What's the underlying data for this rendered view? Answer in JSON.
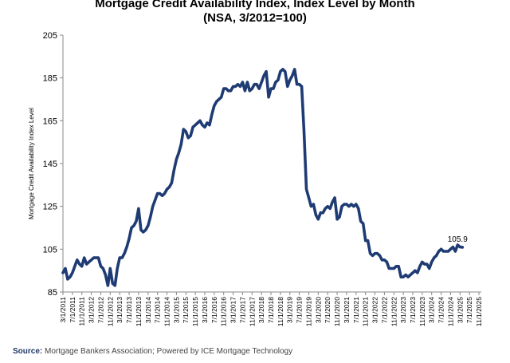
{
  "chart_data": {
    "type": "line",
    "title": "Mortgage Credit Availability Index, Index Level by Month",
    "subtitle": "(NSA, 3/2012=100)",
    "ylabel": "Mortgage Credit Availability Index Level",
    "xlabel": "",
    "ylim": [
      85,
      205
    ],
    "yticks": [
      85,
      105,
      125,
      145,
      165,
      185,
      205
    ],
    "xlim": [
      "2011-03",
      "2025-12"
    ],
    "xtick_labels": [
      "3/1/2011",
      "7/1/2011",
      "11/1/2011",
      "3/1/2012",
      "7/1/2012",
      "11/1/2012",
      "3/1/2013",
      "7/1/2013",
      "11/1/2013",
      "3/1/2014",
      "7/1/2014",
      "11/1/2014",
      "3/1/2015",
      "7/1/2015",
      "11/1/2015",
      "3/1/2016",
      "7/1/2016",
      "11/1/2016",
      "3/1/2017",
      "7/1/2017",
      "11/1/2017",
      "3/1/2018",
      "7/1/2018",
      "11/1/2018",
      "3/1/2019",
      "7/1/2019",
      "11/1/2019",
      "3/1/2020",
      "7/1/2020",
      "11/1/2020",
      "3/1/2021",
      "7/1/2021",
      "11/1/2021",
      "3/1/2022",
      "7/1/2022",
      "11/1/2022",
      "3/1/2023",
      "7/1/2023",
      "11/1/2023",
      "3/1/2024",
      "7/1/2024",
      "11/1/2024",
      "3/1/2025",
      "7/1/2025",
      "11/1/2025"
    ],
    "grid": false,
    "line_color": "#1f3b73",
    "annotation": {
      "x": "2025-10",
      "y": 105.9,
      "text": "105.9"
    },
    "series": [
      {
        "points": [
          [
            "2011-03",
            94
          ],
          [
            "2011-04",
            96
          ],
          [
            "2011-05",
            91
          ],
          [
            "2011-06",
            92
          ],
          [
            "2011-07",
            94
          ],
          [
            "2011-08",
            97
          ],
          [
            "2011-09",
            100
          ],
          [
            "2011-10",
            98
          ],
          [
            "2011-11",
            97
          ],
          [
            "2011-12",
            101
          ],
          [
            "2012-01",
            98
          ],
          [
            "2012-02",
            99
          ],
          [
            "2012-03",
            100
          ],
          [
            "2012-04",
            101
          ],
          [
            "2012-05",
            101
          ],
          [
            "2012-06",
            101
          ],
          [
            "2012-07",
            97
          ],
          [
            "2012-08",
            96
          ],
          [
            "2012-09",
            93
          ],
          [
            "2012-10",
            88
          ],
          [
            "2012-11",
            96
          ],
          [
            "2012-12",
            89
          ],
          [
            "2013-01",
            88
          ],
          [
            "2013-02",
            96
          ],
          [
            "2013-03",
            101
          ],
          [
            "2013-04",
            101
          ],
          [
            "2013-05",
            103
          ],
          [
            "2013-06",
            106
          ],
          [
            "2013-07",
            110
          ],
          [
            "2013-08",
            115
          ],
          [
            "2013-09",
            116
          ],
          [
            "2013-10",
            118
          ],
          [
            "2013-11",
            124
          ],
          [
            "2013-12",
            114
          ],
          [
            "2014-01",
            113
          ],
          [
            "2014-02",
            114
          ],
          [
            "2014-03",
            116
          ],
          [
            "2014-04",
            120
          ],
          [
            "2014-05",
            125
          ],
          [
            "2014-06",
            128
          ],
          [
            "2014-07",
            131
          ],
          [
            "2014-08",
            131
          ],
          [
            "2014-09",
            130
          ],
          [
            "2014-10",
            131
          ],
          [
            "2014-11",
            133
          ],
          [
            "2014-12",
            134
          ],
          [
            "2015-01",
            136
          ],
          [
            "2015-02",
            142
          ],
          [
            "2015-03",
            147
          ],
          [
            "2015-04",
            150
          ],
          [
            "2015-05",
            154
          ],
          [
            "2015-06",
            161
          ],
          [
            "2015-07",
            160
          ],
          [
            "2015-08",
            157
          ],
          [
            "2015-09",
            158
          ],
          [
            "2015-10",
            162
          ],
          [
            "2015-11",
            163
          ],
          [
            "2015-12",
            164
          ],
          [
            "2016-01",
            165
          ],
          [
            "2016-02",
            163
          ],
          [
            "2016-03",
            162
          ],
          [
            "2016-04",
            164
          ],
          [
            "2016-05",
            163
          ],
          [
            "2016-06",
            168
          ],
          [
            "2016-07",
            172
          ],
          [
            "2016-08",
            174
          ],
          [
            "2016-09",
            175
          ],
          [
            "2016-10",
            176
          ],
          [
            "2016-11",
            180
          ],
          [
            "2016-12",
            180
          ],
          [
            "2017-01",
            179
          ],
          [
            "2017-02",
            179
          ],
          [
            "2017-03",
            181
          ],
          [
            "2017-04",
            181
          ],
          [
            "2017-05",
            182
          ],
          [
            "2017-06",
            181
          ],
          [
            "2017-07",
            183
          ],
          [
            "2017-08",
            179
          ],
          [
            "2017-09",
            183
          ],
          [
            "2017-10",
            179
          ],
          [
            "2017-11",
            180
          ],
          [
            "2017-12",
            182
          ],
          [
            "2018-01",
            182
          ],
          [
            "2018-02",
            180
          ],
          [
            "2018-03",
            183
          ],
          [
            "2018-04",
            186
          ],
          [
            "2018-05",
            188
          ],
          [
            "2018-06",
            176
          ],
          [
            "2018-07",
            180
          ],
          [
            "2018-08",
            180
          ],
          [
            "2018-09",
            183
          ],
          [
            "2018-10",
            184
          ],
          [
            "2018-11",
            188
          ],
          [
            "2018-12",
            189
          ],
          [
            "2019-01",
            188
          ],
          [
            "2019-02",
            181
          ],
          [
            "2019-03",
            184
          ],
          [
            "2019-04",
            186
          ],
          [
            "2019-05",
            189
          ],
          [
            "2019-06",
            182
          ],
          [
            "2019-07",
            182
          ],
          [
            "2019-08",
            181
          ],
          [
            "2019-09",
            160
          ],
          [
            "2019-10",
            133
          ],
          [
            "2019-11",
            129
          ],
          [
            "2019-12",
            125
          ],
          [
            "2020-01",
            126
          ],
          [
            "2020-02",
            121
          ],
          [
            "2020-03",
            119
          ],
          [
            "2020-04",
            122
          ],
          [
            "2020-05",
            122
          ],
          [
            "2020-06",
            124
          ],
          [
            "2020-07",
            125
          ],
          [
            "2020-08",
            124
          ],
          [
            "2020-09",
            127
          ],
          [
            "2020-10",
            129
          ],
          [
            "2020-11",
            119
          ],
          [
            "2020-12",
            120
          ],
          [
            "2021-01",
            125
          ],
          [
            "2021-02",
            126
          ],
          [
            "2021-03",
            126
          ],
          [
            "2021-04",
            125
          ],
          [
            "2021-05",
            126
          ],
          [
            "2021-06",
            125
          ],
          [
            "2021-07",
            126
          ],
          [
            "2021-08",
            124
          ],
          [
            "2021-09",
            118
          ],
          [
            "2021-10",
            117
          ],
          [
            "2021-11",
            109
          ],
          [
            "2021-12",
            109
          ],
          [
            "2022-01",
            103
          ],
          [
            "2022-02",
            102
          ],
          [
            "2022-03",
            103
          ],
          [
            "2022-04",
            103
          ],
          [
            "2022-05",
            102
          ],
          [
            "2022-06",
            100
          ],
          [
            "2022-07",
            100
          ],
          [
            "2022-08",
            99
          ],
          [
            "2022-09",
            96
          ],
          [
            "2022-10",
            96
          ],
          [
            "2022-11",
            96
          ],
          [
            "2022-12",
            97
          ],
          [
            "2023-01",
            97
          ],
          [
            "2023-02",
            92
          ],
          [
            "2023-03",
            92
          ],
          [
            "2023-04",
            93
          ],
          [
            "2023-05",
            92
          ],
          [
            "2023-06",
            93
          ],
          [
            "2023-07",
            94
          ],
          [
            "2023-08",
            95
          ],
          [
            "2023-09",
            94
          ],
          [
            "2023-10",
            97
          ],
          [
            "2023-11",
            99
          ],
          [
            "2023-12",
            98
          ],
          [
            "2024-01",
            98
          ],
          [
            "2024-02",
            96
          ],
          [
            "2024-03",
            99
          ],
          [
            "2024-04",
            101
          ],
          [
            "2024-05",
            102
          ],
          [
            "2024-06",
            104
          ],
          [
            "2024-07",
            105
          ],
          [
            "2024-08",
            104
          ],
          [
            "2024-09",
            104
          ],
          [
            "2024-10",
            104
          ],
          [
            "2024-11",
            105
          ],
          [
            "2024-12",
            106
          ],
          [
            "2025-01",
            104
          ],
          [
            "2025-02",
            107
          ],
          [
            "2025-03",
            106
          ],
          [
            "2025-04",
            105.9
          ]
        ]
      }
    ]
  },
  "source": {
    "label": "Source:",
    "text": "Mortgage Bankers Association; Powered by ICE Mortgage Technology"
  }
}
